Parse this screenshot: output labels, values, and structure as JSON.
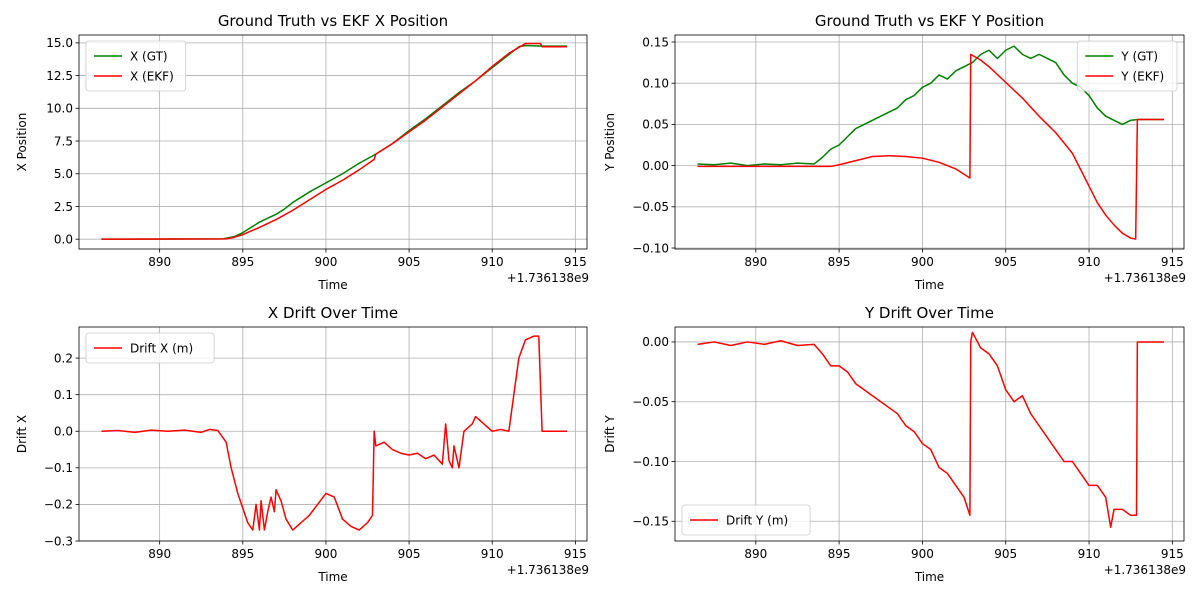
{
  "colors": {
    "gt": "#008000",
    "ekf": "#ff0000",
    "grid": "#b0b0b0"
  },
  "chart_data": [
    {
      "type": "line",
      "title": "Ground Truth vs EKF X Position",
      "xlabel": "Time",
      "ylabel": "X Position",
      "offset_text": "+1.736138e9",
      "xlim": [
        885.15,
        915.7
      ],
      "ylim": [
        -0.75,
        15.6
      ],
      "xticks": [
        890,
        895,
        900,
        905,
        910,
        915
      ],
      "yticks": [
        0.0,
        2.5,
        5.0,
        7.5,
        10.0,
        12.5,
        15.0
      ],
      "ytick_labels": [
        "0.0",
        "2.5",
        "5.0",
        "7.5",
        "10.0",
        "12.5",
        "15.0"
      ],
      "legend": "upper-left",
      "series": [
        {
          "name": "X (GT)",
          "color": "green",
          "x": [
            886.5,
            893.8,
            894.5,
            895.0,
            895.5,
            896.0,
            896.5,
            897.0,
            897.5,
            898.0,
            899.0,
            900.0,
            901.0,
            902.0,
            903.0,
            904.0,
            905.0,
            906.0,
            907.0,
            908.0,
            909.0,
            910.0,
            911.0,
            911.6,
            912.0,
            913.0,
            914.5
          ],
          "values": [
            0.0,
            0.02,
            0.2,
            0.5,
            0.9,
            1.3,
            1.6,
            1.9,
            2.3,
            2.8,
            3.6,
            4.3,
            5.0,
            5.8,
            6.5,
            7.3,
            8.3,
            9.2,
            10.2,
            11.2,
            12.1,
            13.1,
            14.1,
            14.7,
            14.8,
            14.75,
            14.75
          ]
        },
        {
          "name": "X (EKF)",
          "color": "red",
          "x": [
            886.5,
            894.0,
            894.5,
            895.0,
            896.0,
            897.0,
            898.0,
            899.0,
            900.0,
            901.0,
            902.0,
            902.9,
            903.0,
            904.0,
            905.0,
            906.0,
            907.0,
            908.0,
            909.0,
            910.0,
            911.0,
            912.0,
            912.9,
            913.0,
            914.5
          ],
          "values": [
            0.0,
            0.02,
            0.15,
            0.35,
            0.9,
            1.5,
            2.2,
            3.0,
            3.8,
            4.5,
            5.3,
            6.1,
            6.5,
            7.3,
            8.2,
            9.1,
            10.1,
            11.1,
            12.1,
            13.2,
            14.2,
            14.95,
            14.95,
            14.7,
            14.7
          ]
        }
      ]
    },
    {
      "type": "line",
      "title": "Ground Truth vs EKF Y Position",
      "xlabel": "Time",
      "ylabel": "Y Position",
      "offset_text": "+1.736138e9",
      "xlim": [
        885.15,
        915.7
      ],
      "ylim": [
        -0.1012,
        0.1585
      ],
      "xticks": [
        890,
        895,
        900,
        905,
        910,
        915
      ],
      "yticks": [
        -0.1,
        -0.05,
        0.0,
        0.05,
        0.1,
        0.15
      ],
      "ytick_labels": [
        "−0.10",
        "−0.05",
        "0.00",
        "0.05",
        "0.10",
        "0.15"
      ],
      "legend": "upper-right",
      "series": [
        {
          "name": "Y (GT)",
          "color": "green",
          "x": [
            886.5,
            887.5,
            888.5,
            889.5,
            890.5,
            891.5,
            892.5,
            893.5,
            894.0,
            894.5,
            895.0,
            895.5,
            896.0,
            896.5,
            897.0,
            897.5,
            898.0,
            898.5,
            899.0,
            899.5,
            900.0,
            900.5,
            901.0,
            901.5,
            902.0,
            902.5,
            903.0,
            903.5,
            904.0,
            904.5,
            905.0,
            905.5,
            906.0,
            906.5,
            907.0,
            907.5,
            908.0,
            908.5,
            909.0,
            909.5,
            910.0,
            910.5,
            911.0,
            911.5,
            912.0,
            912.5,
            913.0,
            914.5
          ],
          "values": [
            0.002,
            0.001,
            0.003,
            0.0,
            0.002,
            0.001,
            0.003,
            0.002,
            0.01,
            0.02,
            0.025,
            0.035,
            0.045,
            0.05,
            0.055,
            0.06,
            0.065,
            0.07,
            0.08,
            0.085,
            0.095,
            0.1,
            0.11,
            0.105,
            0.115,
            0.12,
            0.125,
            0.135,
            0.14,
            0.13,
            0.14,
            0.145,
            0.135,
            0.13,
            0.135,
            0.13,
            0.125,
            0.11,
            0.1,
            0.095,
            0.085,
            0.07,
            0.06,
            0.055,
            0.05,
            0.055,
            0.056,
            0.056
          ]
        },
        {
          "name": "Y (EKF)",
          "color": "red",
          "x": [
            886.5,
            894.5,
            895.0,
            896.0,
            897.0,
            898.0,
            899.0,
            900.0,
            901.0,
            902.0,
            902.85,
            902.9,
            903.5,
            904.0,
            905.0,
            906.0,
            907.0,
            908.0,
            909.0,
            910.0,
            910.5,
            911.0,
            911.5,
            912.0,
            912.5,
            912.8,
            912.9,
            914.5
          ],
          "values": [
            -0.001,
            -0.001,
            0.001,
            0.006,
            0.011,
            0.012,
            0.011,
            0.009,
            0.004,
            -0.004,
            -0.015,
            0.135,
            0.128,
            0.12,
            0.101,
            0.082,
            0.06,
            0.04,
            0.015,
            -0.025,
            -0.045,
            -0.06,
            -0.072,
            -0.082,
            -0.088,
            -0.089,
            0.056,
            0.056
          ]
        }
      ]
    },
    {
      "type": "line",
      "title": "X Drift Over Time",
      "xlabel": "Time",
      "ylabel": "Drift X",
      "offset_text": "+1.736138e9",
      "xlim": [
        885.15,
        915.7
      ],
      "ylim": [
        -0.3,
        0.285
      ],
      "xticks": [
        890,
        895,
        900,
        905,
        910,
        915
      ],
      "yticks": [
        -0.3,
        -0.2,
        -0.1,
        0.0,
        0.1,
        0.2
      ],
      "ytick_labels": [
        "−0.3",
        "−0.2",
        "−0.1",
        "0.0",
        "0.1",
        "0.2"
      ],
      "legend": "upper-left",
      "series": [
        {
          "name": "Drift X (m)",
          "color": "red",
          "x": [
            886.5,
            887.5,
            888.5,
            889.5,
            890.5,
            891.5,
            892.5,
            893.0,
            893.5,
            894.0,
            894.3,
            894.7,
            895.0,
            895.3,
            895.6,
            895.8,
            896.0,
            896.1,
            896.3,
            896.5,
            896.7,
            896.9,
            897.0,
            897.3,
            897.6,
            898.0,
            898.5,
            899.0,
            899.5,
            900.0,
            900.5,
            901.0,
            901.5,
            902.0,
            902.5,
            902.8,
            902.9,
            903.0,
            903.5,
            904.0,
            904.5,
            905.0,
            905.5,
            906.0,
            906.5,
            907.0,
            907.2,
            907.4,
            907.6,
            907.7,
            908.0,
            908.3,
            908.8,
            909.0,
            909.5,
            910.0,
            910.5,
            911.0,
            911.3,
            911.6,
            912.0,
            912.5,
            912.8,
            913.0,
            914.5
          ],
          "values": [
            0.0,
            0.002,
            -0.003,
            0.003,
            0.0,
            0.003,
            -0.003,
            0.005,
            0.002,
            -0.03,
            -0.1,
            -0.17,
            -0.21,
            -0.25,
            -0.27,
            -0.2,
            -0.27,
            -0.19,
            -0.27,
            -0.22,
            -0.18,
            -0.22,
            -0.16,
            -0.19,
            -0.24,
            -0.27,
            -0.25,
            -0.23,
            -0.2,
            -0.17,
            -0.18,
            -0.24,
            -0.26,
            -0.27,
            -0.25,
            -0.23,
            0.0,
            -0.04,
            -0.03,
            -0.05,
            -0.06,
            -0.065,
            -0.06,
            -0.075,
            -0.065,
            -0.09,
            0.02,
            -0.08,
            -0.1,
            -0.04,
            -0.1,
            0.0,
            0.02,
            0.04,
            0.02,
            0.0,
            0.005,
            0.0,
            0.1,
            0.2,
            0.25,
            0.26,
            0.26,
            0.0,
            0.0
          ]
        }
      ]
    },
    {
      "type": "line",
      "title": "Y Drift Over Time",
      "xlabel": "Time",
      "ylabel": "Drift Y",
      "offset_text": "+1.736138e9",
      "xlim": [
        885.15,
        915.7
      ],
      "ylim": [
        -0.1665,
        0.0125
      ],
      "xticks": [
        890,
        895,
        900,
        905,
        910,
        915
      ],
      "yticks": [
        -0.15,
        -0.1,
        -0.05,
        0.0
      ],
      "ytick_labels": [
        "−0.15",
        "−0.10",
        "−0.05",
        "0.00"
      ],
      "legend": "lower-left",
      "series": [
        {
          "name": "Drift Y (m)",
          "color": "red",
          "x": [
            886.5,
            887.5,
            888.5,
            889.5,
            890.5,
            891.5,
            892.5,
            893.5,
            894.0,
            894.5,
            895.0,
            895.5,
            896.0,
            896.5,
            897.0,
            897.5,
            898.0,
            898.5,
            899.0,
            899.5,
            900.0,
            900.5,
            901.0,
            901.5,
            902.0,
            902.5,
            902.85,
            902.9,
            903.0,
            903.5,
            904.0,
            904.5,
            905.0,
            905.5,
            906.0,
            906.5,
            907.0,
            907.5,
            908.0,
            908.5,
            909.0,
            909.5,
            910.0,
            910.5,
            911.0,
            911.3,
            911.5,
            912.0,
            912.5,
            912.85,
            912.9,
            914.5
          ],
          "values": [
            -0.002,
            0.0,
            -0.003,
            0.0,
            -0.002,
            0.001,
            -0.003,
            -0.002,
            -0.01,
            -0.02,
            -0.02,
            -0.025,
            -0.035,
            -0.04,
            -0.045,
            -0.05,
            -0.055,
            -0.06,
            -0.07,
            -0.075,
            -0.085,
            -0.09,
            -0.105,
            -0.11,
            -0.12,
            -0.13,
            -0.145,
            0.0,
            0.008,
            -0.005,
            -0.01,
            -0.02,
            -0.04,
            -0.05,
            -0.045,
            -0.06,
            -0.07,
            -0.08,
            -0.09,
            -0.1,
            -0.1,
            -0.11,
            -0.12,
            -0.12,
            -0.13,
            -0.155,
            -0.14,
            -0.14,
            -0.145,
            -0.145,
            0.0,
            0.0
          ]
        }
      ]
    }
  ]
}
